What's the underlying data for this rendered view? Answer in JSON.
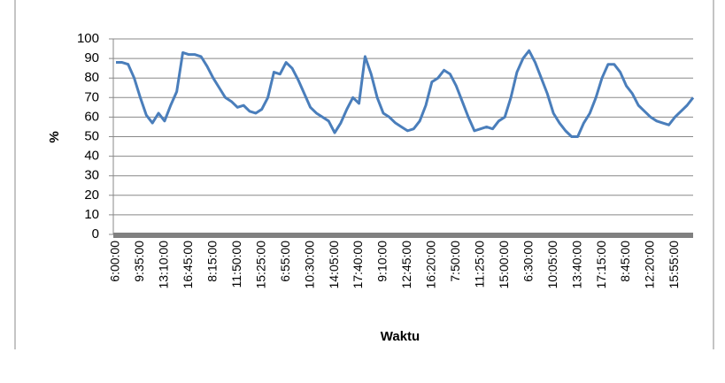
{
  "chart_data": {
    "type": "line",
    "xlabel": "Waktu",
    "ylabel": "%",
    "categories": [
      "6:00:00",
      null,
      null,
      null,
      "9:35:00",
      null,
      null,
      null,
      "13:10:00",
      null,
      null,
      null,
      "16:45:00",
      null,
      null,
      null,
      "8:15:00",
      null,
      null,
      null,
      "11:50:00",
      null,
      null,
      null,
      "15:25:00",
      null,
      null,
      null,
      "6:55:00",
      null,
      null,
      null,
      "10:30:00",
      null,
      null,
      null,
      "14:05:00",
      null,
      null,
      null,
      "17:40:00",
      null,
      null,
      null,
      "9:10:00",
      null,
      null,
      null,
      "12:45:00",
      null,
      null,
      null,
      "16:20:00",
      null,
      null,
      null,
      "7:50:00",
      null,
      null,
      null,
      "11:25:00",
      null,
      null,
      null,
      "15:00:00",
      null,
      null,
      null,
      "6:30:00",
      null,
      null,
      null,
      "10:05:00",
      null,
      null,
      null,
      "13:40:00",
      null,
      null,
      null,
      "17:15:00",
      null,
      null,
      null,
      "8:45:00",
      null,
      null,
      null,
      "12:20:00",
      null,
      null,
      null,
      "15:55:00",
      null,
      null,
      null
    ],
    "values": [
      88,
      88,
      87,
      80,
      70,
      61,
      57,
      62,
      58,
      66,
      73,
      93,
      92,
      92,
      91,
      86,
      80,
      75,
      70,
      68,
      65,
      66,
      63,
      62,
      64,
      70,
      83,
      82,
      88,
      85,
      79,
      72,
      65,
      62,
      60,
      58,
      52,
      57,
      64,
      70,
      67,
      91,
      82,
      70,
      62,
      60,
      57,
      55,
      53,
      54,
      58,
      66,
      78,
      80,
      84,
      82,
      76,
      68,
      60,
      53,
      54,
      55,
      54,
      58,
      60,
      70,
      83,
      90,
      94,
      88,
      80,
      72,
      62,
      57,
      53,
      50,
      50,
      57,
      62,
      70,
      80,
      87,
      87,
      83,
      76,
      72,
      66,
      63,
      60,
      58,
      57,
      56,
      60,
      63,
      66,
      70
    ],
    "color": "#4a7ebb",
    "ylim": [
      0,
      100
    ],
    "yticks": [
      0,
      10,
      20,
      30,
      40,
      50,
      60,
      70,
      80,
      90,
      100
    ],
    "grid": true
  }
}
